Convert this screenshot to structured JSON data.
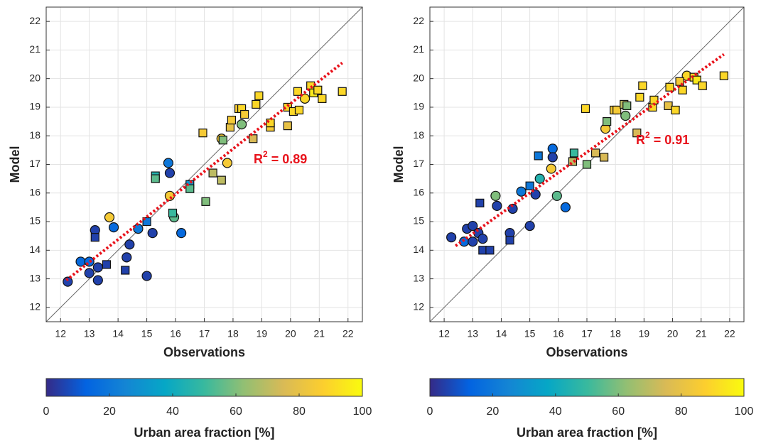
{
  "chart_data": [
    {
      "type": "scatter",
      "xlabel": "Observations",
      "ylabel": "Model",
      "xlim": [
        11.5,
        22.5
      ],
      "ylim": [
        11.5,
        22.5
      ],
      "xticks": [
        12,
        13,
        14,
        15,
        16,
        17,
        18,
        19,
        20,
        21,
        22
      ],
      "yticks": [
        12,
        13,
        14,
        15,
        16,
        17,
        18,
        19,
        20,
        21,
        22
      ],
      "grid": true,
      "x": [
        12.25,
        12.7,
        13.0,
        13.0,
        13.2,
        13.3,
        13.3,
        13.7,
        13.85,
        14.3,
        14.4,
        14.7,
        15.0,
        15.2,
        15.75,
        15.8,
        15.8,
        15.95,
        16.2,
        17.6,
        17.8,
        18.3,
        20.5,
        13.2,
        13.6,
        14.25,
        15.0,
        15.3,
        15.3,
        15.9,
        16.5,
        16.5,
        16.95,
        17.05,
        17.3,
        17.6,
        17.65,
        17.9,
        17.95,
        18.2,
        18.3,
        18.4,
        18.7,
        18.8,
        18.9,
        19.3,
        19.3,
        19.9,
        19.9,
        20.1,
        20.25,
        20.3,
        20.7,
        20.8,
        20.95,
        21.1,
        21.8
      ],
      "y": [
        12.9,
        13.6,
        13.2,
        13.6,
        14.7,
        12.95,
        13.4,
        15.15,
        14.8,
        13.75,
        14.2,
        14.75,
        13.1,
        14.6,
        17.05,
        16.7,
        15.9,
        15.15,
        14.6,
        17.9,
        17.05,
        18.4,
        19.3,
        14.45,
        13.5,
        13.3,
        15.0,
        16.6,
        16.5,
        15.3,
        16.3,
        16.15,
        18.1,
        15.7,
        16.7,
        16.45,
        17.85,
        18.3,
        18.55,
        18.95,
        18.95,
        18.75,
        17.9,
        19.1,
        19.4,
        18.3,
        18.45,
        18.35,
        19.0,
        18.85,
        19.55,
        18.9,
        19.75,
        19.5,
        19.6,
        19.3,
        19.55
      ],
      "c": [
        5,
        15,
        5,
        15,
        5,
        5,
        5,
        85,
        15,
        5,
        5,
        20,
        5,
        5,
        20,
        5,
        85,
        55,
        15,
        85,
        85,
        60,
        90,
        5,
        5,
        5,
        20,
        45,
        55,
        50,
        30,
        55,
        85,
        60,
        70,
        70,
        60,
        80,
        85,
        85,
        90,
        85,
        75,
        90,
        90,
        85,
        90,
        80,
        90,
        90,
        90,
        90,
        90,
        95,
        90,
        90,
        90
      ],
      "shape": [
        "circle",
        "circle",
        "circle",
        "circle",
        "circle",
        "circle",
        "circle",
        "circle",
        "circle",
        "circle",
        "circle",
        "circle",
        "circle",
        "circle",
        "circle",
        "circle",
        "circle",
        "circle",
        "circle",
        "circle",
        "circle",
        "circle",
        "circle",
        "square",
        "square",
        "square",
        "square",
        "square",
        "square",
        "square",
        "square",
        "square",
        "square",
        "square",
        "square",
        "square",
        "square",
        "square",
        "square",
        "square",
        "square",
        "square",
        "square",
        "square",
        "square",
        "square",
        "square",
        "square",
        "square",
        "square",
        "square",
        "square",
        "square",
        "square",
        "square",
        "square",
        "square"
      ],
      "fit": {
        "x": [
          12.2,
          21.8
        ],
        "y": [
          12.95,
          20.55
        ],
        "color": "#e8121b"
      },
      "annotation": {
        "text": "R",
        "sup": "2",
        "rest": "= 0.89",
        "color": "#e8121b"
      },
      "colorbar": {
        "label": "Urban area fraction [%]",
        "lim": [
          0,
          100
        ],
        "ticks": [
          0,
          20,
          40,
          60,
          80,
          100
        ],
        "colormap": "parula"
      }
    },
    {
      "type": "scatter",
      "xlabel": "Observations",
      "ylabel": "Model",
      "xlim": [
        11.5,
        22.5
      ],
      "ylim": [
        11.5,
        22.5
      ],
      "xticks": [
        12,
        13,
        14,
        15,
        16,
        17,
        18,
        19,
        20,
        21,
        22
      ],
      "yticks": [
        12,
        13,
        14,
        15,
        16,
        17,
        18,
        19,
        20,
        21,
        22
      ],
      "grid": true,
      "x": [
        12.25,
        12.7,
        12.8,
        13.0,
        13.0,
        13.2,
        13.35,
        13.85,
        13.8,
        14.3,
        14.4,
        14.7,
        15.0,
        15.2,
        15.35,
        15.8,
        15.8,
        15.75,
        15.95,
        16.25,
        17.65,
        18.35,
        20.5,
        13.25,
        13.35,
        13.6,
        14.3,
        15.0,
        15.3,
        16.5,
        16.55,
        16.95,
        17.0,
        17.3,
        17.6,
        17.7,
        17.95,
        18.05,
        18.3,
        18.4,
        18.75,
        18.85,
        18.95,
        19.3,
        19.35,
        19.85,
        19.9,
        20.1,
        20.25,
        20.35,
        20.75,
        20.85,
        21.05,
        21.8
      ],
      "y": [
        14.45,
        14.3,
        14.75,
        14.85,
        14.3,
        14.6,
        14.4,
        15.55,
        15.9,
        14.6,
        15.45,
        16.05,
        14.85,
        15.95,
        16.5,
        17.55,
        17.25,
        16.85,
        15.9,
        15.5,
        18.25,
        18.7,
        20.1,
        15.65,
        14.0,
        14.0,
        14.35,
        16.25,
        17.3,
        17.1,
        17.4,
        18.95,
        17.0,
        17.4,
        17.25,
        18.5,
        18.9,
        18.9,
        19.1,
        19.05,
        18.1,
        19.35,
        19.75,
        19.0,
        19.25,
        19.05,
        19.7,
        18.9,
        19.9,
        19.6,
        20.05,
        19.95,
        19.75,
        20.1
      ],
      "c": [
        5,
        15,
        5,
        5,
        5,
        5,
        5,
        5,
        60,
        5,
        5,
        20,
        5,
        5,
        45,
        15,
        5,
        85,
        55,
        15,
        85,
        60,
        90,
        5,
        5,
        5,
        5,
        20,
        20,
        70,
        50,
        90,
        60,
        75,
        75,
        60,
        85,
        85,
        70,
        60,
        75,
        90,
        90,
        90,
        90,
        80,
        90,
        90,
        85,
        90,
        90,
        95,
        90,
        90
      ],
      "shape": [
        "circle",
        "circle",
        "circle",
        "circle",
        "circle",
        "circle",
        "circle",
        "circle",
        "circle",
        "circle",
        "circle",
        "circle",
        "circle",
        "circle",
        "circle",
        "circle",
        "circle",
        "circle",
        "circle",
        "circle",
        "circle",
        "circle",
        "circle",
        "square",
        "square",
        "square",
        "square",
        "square",
        "square",
        "square",
        "square",
        "square",
        "square",
        "square",
        "square",
        "square",
        "square",
        "square",
        "square",
        "square",
        "square",
        "square",
        "square",
        "square",
        "square",
        "square",
        "square",
        "square",
        "square",
        "square",
        "square",
        "square",
        "square",
        "square"
      ],
      "fit": {
        "x": [
          12.4,
          21.8
        ],
        "y": [
          14.15,
          20.85
        ],
        "color": "#e8121b"
      },
      "annotation": {
        "text": "R",
        "sup": "2",
        "rest": "= 0.91",
        "color": "#e8121b"
      },
      "colorbar": {
        "label": "Urban area fraction [%]",
        "lim": [
          0,
          100
        ],
        "ticks": [
          0,
          20,
          40,
          60,
          80,
          100
        ],
        "colormap": "parula"
      }
    }
  ]
}
